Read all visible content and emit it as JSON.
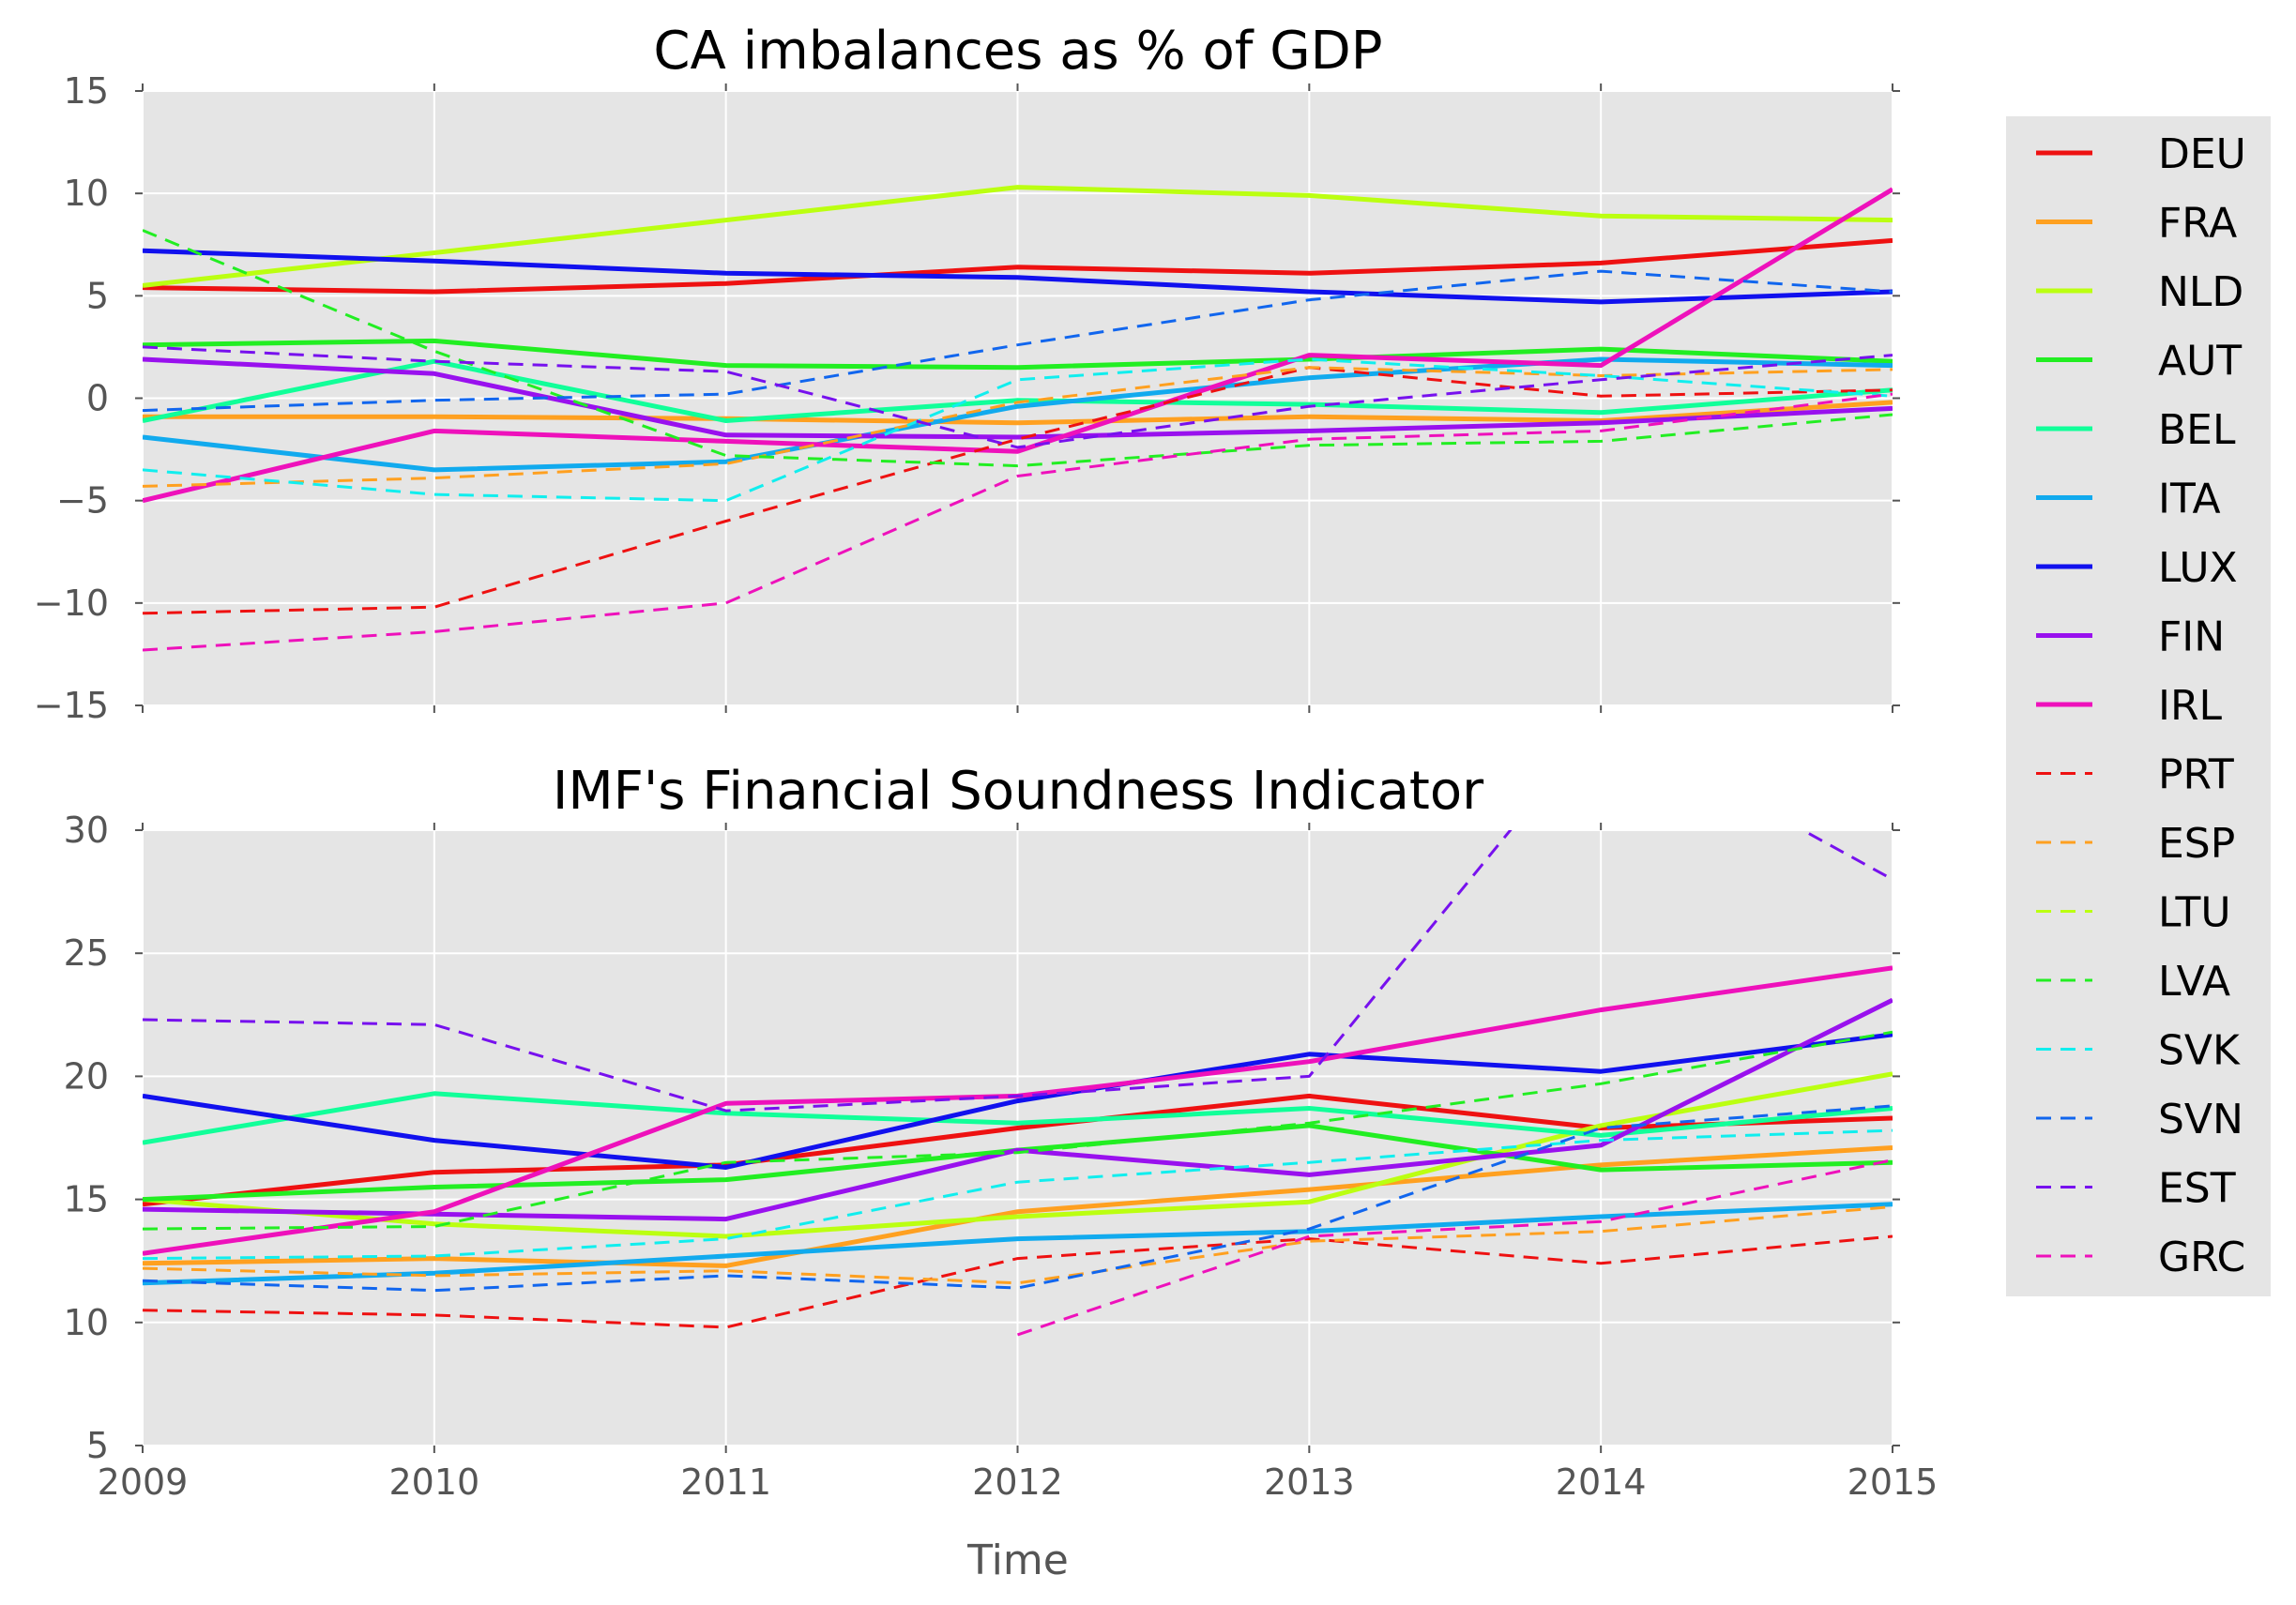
{
  "chart_data": [
    {
      "type": "line",
      "title": "CA imbalances as % of GDP",
      "xlabel": "",
      "ylabel": "",
      "x": [
        2009,
        2010,
        2011,
        2012,
        2013,
        2014,
        2015
      ],
      "xlim": [
        2009,
        2015
      ],
      "ylim": [
        -15,
        15
      ],
      "yticks": [
        -15,
        -10,
        -5,
        0,
        5,
        10,
        15
      ],
      "grid": true,
      "series": [
        {
          "name": "DEU",
          "color": "#ee1111",
          "style": "solid",
          "values": [
            5.4,
            5.2,
            5.6,
            6.4,
            6.1,
            6.6,
            7.7
          ]
        },
        {
          "name": "FRA",
          "color": "#ffa020",
          "style": "solid",
          "values": [
            -0.9,
            -0.9,
            -1.0,
            -1.2,
            -0.9,
            -1.1,
            -0.2
          ]
        },
        {
          "name": "NLD",
          "color": "#bbff11",
          "style": "solid",
          "values": [
            5.5,
            7.1,
            8.7,
            10.3,
            9.9,
            8.9,
            8.7
          ]
        },
        {
          "name": "AUT",
          "color": "#22ee22",
          "style": "solid",
          "values": [
            2.6,
            2.8,
            1.6,
            1.5,
            1.9,
            2.4,
            1.8
          ]
        },
        {
          "name": "BEL",
          "color": "#11ff99",
          "style": "solid",
          "values": [
            -1.1,
            1.8,
            -1.1,
            -0.1,
            -0.3,
            -0.7,
            0.4
          ]
        },
        {
          "name": "ITA",
          "color": "#11aaee",
          "style": "solid",
          "values": [
            -1.9,
            -3.5,
            -3.1,
            -0.4,
            1.0,
            1.9,
            1.6
          ]
        },
        {
          "name": "LUX",
          "color": "#1111ee",
          "style": "solid",
          "values": [
            7.2,
            6.7,
            6.1,
            5.9,
            5.2,
            4.7,
            5.2
          ]
        },
        {
          "name": "FIN",
          "color": "#9911ee",
          "style": "solid",
          "values": [
            1.9,
            1.2,
            -1.8,
            -1.9,
            -1.6,
            -1.2,
            -0.5
          ]
        },
        {
          "name": "IRL",
          "color": "#ee11bb",
          "style": "solid",
          "values": [
            -5.0,
            -1.6,
            -2.1,
            -2.6,
            2.1,
            1.6,
            10.2
          ]
        },
        {
          "name": "PRT",
          "color": "#ee1111",
          "style": "dashed",
          "values": [
            -10.5,
            -10.2,
            -6.0,
            -2.0,
            1.5,
            0.1,
            0.4
          ]
        },
        {
          "name": "ESP",
          "color": "#ffa020",
          "style": "dashed",
          "values": [
            -4.3,
            -3.9,
            -3.2,
            -0.2,
            1.5,
            1.1,
            1.4
          ]
        },
        {
          "name": "LTU",
          "color": "#bbff11",
          "style": "dashed",
          "values": [
            null,
            null,
            null,
            null,
            null,
            null,
            null
          ]
        },
        {
          "name": "LVA",
          "color": "#22ee22",
          "style": "dashed",
          "values": [
            8.2,
            2.3,
            -2.8,
            -3.3,
            -2.3,
            -2.1,
            -0.8
          ]
        },
        {
          "name": "SVK",
          "color": "#11eeee",
          "style": "dashed",
          "values": [
            -3.5,
            -4.7,
            -5.0,
            0.9,
            1.9,
            1.1,
            0.1
          ]
        },
        {
          "name": "SVN",
          "color": "#1166ee",
          "style": "dashed",
          "values": [
            -0.6,
            -0.1,
            0.2,
            2.6,
            4.8,
            6.2,
            5.2
          ]
        },
        {
          "name": "EST",
          "color": "#7711ee",
          "style": "dashed",
          "values": [
            2.5,
            1.8,
            1.3,
            -2.4,
            -0.4,
            0.9,
            2.1
          ]
        },
        {
          "name": "GRC",
          "color": "#ee11bb",
          "style": "dashed",
          "values": [
            -12.3,
            -11.4,
            -10.0,
            -3.8,
            -2.0,
            -1.6,
            0.2
          ]
        }
      ]
    },
    {
      "type": "line",
      "title": "IMF's Financial Soundness Indicator",
      "xlabel": "Time",
      "ylabel": "",
      "x": [
        2009,
        2010,
        2011,
        2012,
        2013,
        2014,
        2015
      ],
      "xlim": [
        2009,
        2015
      ],
      "ylim": [
        5,
        30
      ],
      "yticks": [
        5,
        10,
        15,
        20,
        25,
        30
      ],
      "xticks": [
        "2009",
        "2010",
        "2011",
        "2012",
        "2013",
        "2014",
        "2015"
      ],
      "grid": true,
      "series": [
        {
          "name": "DEU",
          "color": "#ee1111",
          "style": "solid",
          "values": [
            14.8,
            16.1,
            16.4,
            17.9,
            19.2,
            17.9,
            18.3
          ]
        },
        {
          "name": "FRA",
          "color": "#ffa020",
          "style": "solid",
          "values": [
            12.4,
            12.6,
            12.3,
            14.5,
            15.4,
            16.4,
            17.1
          ]
        },
        {
          "name": "NLD",
          "color": "#bbff11",
          "style": "solid",
          "values": [
            15.0,
            14.0,
            13.5,
            14.3,
            14.9,
            18.0,
            20.1
          ]
        },
        {
          "name": "AUT",
          "color": "#22ee22",
          "style": "solid",
          "values": [
            15.0,
            15.5,
            15.8,
            17.0,
            18.0,
            16.2,
            16.5
          ]
        },
        {
          "name": "BEL",
          "color": "#11ff99",
          "style": "solid",
          "values": [
            17.3,
            19.3,
            18.5,
            18.1,
            18.7,
            17.6,
            18.7
          ]
        },
        {
          "name": "ITA",
          "color": "#11aaee",
          "style": "solid",
          "values": [
            11.6,
            12.0,
            12.7,
            13.4,
            13.7,
            14.3,
            14.8
          ]
        },
        {
          "name": "LUX",
          "color": "#1111ee",
          "style": "solid",
          "values": [
            19.2,
            17.4,
            16.3,
            19.0,
            20.9,
            20.2,
            21.7
          ]
        },
        {
          "name": "FIN",
          "color": "#9911ee",
          "style": "solid",
          "values": [
            14.6,
            14.4,
            14.2,
            17.0,
            16.0,
            17.2,
            23.1
          ]
        },
        {
          "name": "IRL",
          "color": "#ee11bb",
          "style": "solid",
          "values": [
            12.8,
            14.5,
            18.9,
            19.2,
            20.6,
            22.7,
            24.4
          ]
        },
        {
          "name": "PRT",
          "color": "#ee1111",
          "style": "dashed",
          "values": [
            10.5,
            10.3,
            9.8,
            12.6,
            13.4,
            12.4,
            13.5
          ]
        },
        {
          "name": "ESP",
          "color": "#ffa020",
          "style": "dashed",
          "values": [
            12.2,
            11.9,
            12.1,
            11.6,
            13.3,
            13.7,
            14.7
          ]
        },
        {
          "name": "LTU",
          "color": "#bbff11",
          "style": "dashed",
          "values": [
            null,
            null,
            null,
            null,
            null,
            null,
            null
          ]
        },
        {
          "name": "LVA",
          "color": "#22ee22",
          "style": "dashed",
          "values": [
            13.8,
            13.9,
            16.5,
            16.9,
            18.1,
            19.7,
            21.8
          ]
        },
        {
          "name": "SVK",
          "color": "#11eeee",
          "style": "dashed",
          "values": [
            12.6,
            12.7,
            13.4,
            15.7,
            16.5,
            17.4,
            17.8
          ]
        },
        {
          "name": "SVN",
          "color": "#1166ee",
          "style": "dashed",
          "values": [
            11.7,
            11.3,
            11.9,
            11.4,
            13.8,
            17.9,
            18.8
          ]
        },
        {
          "name": "EST",
          "color": "#7711ee",
          "style": "dashed",
          "values": [
            22.3,
            22.1,
            18.6,
            19.2,
            20.0,
            34.5,
            28.0
          ]
        },
        {
          "name": "GRC",
          "color": "#ee11bb",
          "style": "dashed",
          "values": [
            null,
            null,
            null,
            9.5,
            13.5,
            14.1,
            16.6
          ]
        }
      ]
    }
  ],
  "legend": {
    "placement": "outside-right",
    "entries": [
      "DEU",
      "FRA",
      "NLD",
      "AUT",
      "BEL",
      "ITA",
      "LUX",
      "FIN",
      "IRL",
      "PRT",
      "ESP",
      "LTU",
      "LVA",
      "SVK",
      "SVN",
      "EST",
      "GRC"
    ]
  }
}
